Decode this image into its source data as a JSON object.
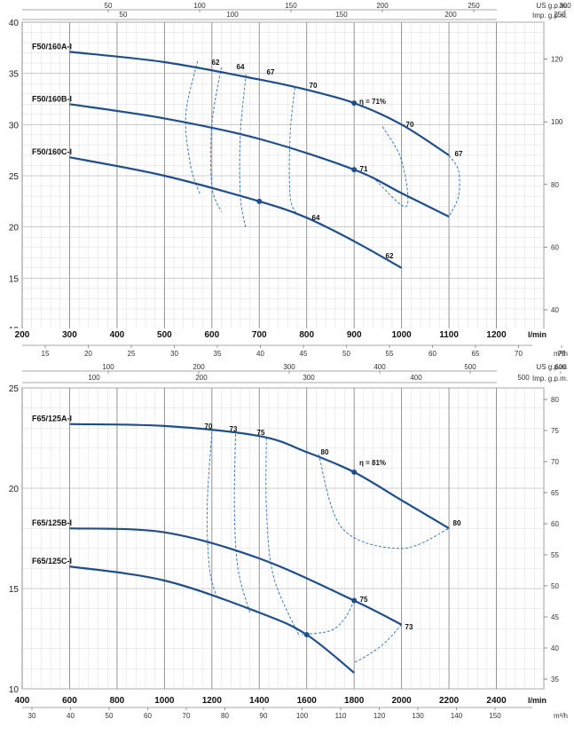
{
  "chart_data": [
    {
      "type": "line",
      "subtype": "pump-performance-curves",
      "xlabel": "l/min",
      "xlim": [
        200,
        1300
      ],
      "ylim": [
        10,
        40
      ],
      "x_ticks": [
        200,
        300,
        400,
        500,
        600,
        700,
        800,
        900,
        1000,
        1100,
        1200
      ],
      "y_ticks": [
        10,
        15,
        20,
        25,
        30,
        35,
        40
      ],
      "grid": true,
      "top_axes": [
        {
          "label": "US g.p.m.",
          "ticks": [
            50,
            100,
            150,
            200,
            250,
            300
          ]
        },
        {
          "label": "Imp. g.p.m.",
          "ticks": [
            50,
            100,
            150,
            200,
            250
          ]
        }
      ],
      "bottom_axis2": {
        "label": "m³/h",
        "ticks": [
          15,
          20,
          25,
          30,
          35,
          40,
          45,
          50,
          55,
          60,
          65,
          70,
          75
        ]
      },
      "right_axis": {
        "ticks": [
          40,
          60,
          80,
          100,
          120
        ]
      },
      "series": [
        {
          "name": "F50/160A-I",
          "x": [
            300,
            500,
            700,
            800,
            900,
            1000,
            1100
          ],
          "y": [
            37.1,
            36.1,
            34.4,
            33.4,
            32.1,
            30.0,
            27.0
          ]
        },
        {
          "name": "F50/160B-I",
          "x": [
            300,
            500,
            700,
            900,
            1000,
            1100
          ],
          "y": [
            32.0,
            30.6,
            28.6,
            25.6,
            23.3,
            21.0
          ]
        },
        {
          "name": "F50/160C-I",
          "x": [
            300,
            500,
            700,
            800,
            900,
            1000
          ],
          "y": [
            26.8,
            25.0,
            22.5,
            20.9,
            18.6,
            16.0
          ]
        }
      ],
      "efficiency_curves": [
        {
          "label": "62",
          "x": [
            570,
            545,
            555,
            575
          ],
          "y": [
            36.2,
            31.0,
            26.0,
            23.2
          ]
        },
        {
          "label": "64",
          "x": [
            620,
            600,
            600,
            620
          ],
          "y": [
            35.6,
            30.0,
            24.0,
            21.5
          ]
        },
        {
          "label": "67",
          "x": [
            672,
            660,
            660,
            672
          ],
          "y": [
            34.9,
            29.0,
            23.0,
            19.8
          ]
        },
        {
          "label": "70",
          "x": [
            775,
            765,
            765,
            780
          ],
          "y": [
            33.6,
            29.0,
            23.0,
            21.2
          ]
        },
        {
          "label": "70",
          "x": [
            960,
            1000,
            1010,
            945
          ],
          "y": [
            29.8,
            26.5,
            22.0,
            24.6
          ]
        },
        {
          "label": "67",
          "x": [
            1100,
            1120,
            1120,
            1100
          ],
          "y": [
            27.0,
            25.5,
            23.0,
            21.0
          ]
        }
      ],
      "markers": [
        {
          "x": 900,
          "y": 32.1
        },
        {
          "x": 900,
          "y": 25.6
        },
        {
          "x": 700,
          "y": 22.5
        }
      ],
      "annotations": [
        "62",
        "64",
        "67",
        "70",
        "η = 71%",
        "70",
        "67",
        "71",
        "64",
        "62"
      ]
    },
    {
      "type": "line",
      "subtype": "pump-performance-curves",
      "xlabel": "l/min",
      "xlim": [
        400,
        2600
      ],
      "ylim": [
        10,
        25
      ],
      "x_ticks": [
        400,
        600,
        800,
        1000,
        1200,
        1400,
        1600,
        1800,
        2000,
        2200,
        2400
      ],
      "y_ticks": [
        10,
        15,
        20,
        25
      ],
      "grid": true,
      "top_axes": [
        {
          "label": "US g.p.m.",
          "ticks": [
            100,
            200,
            300,
            400,
            500,
            600
          ]
        },
        {
          "label": "Imp. g.p.m.",
          "ticks": [
            100,
            200,
            300,
            400,
            500
          ]
        }
      ],
      "bottom_axis2": {
        "label": "m³/h",
        "ticks": [
          30,
          40,
          50,
          60,
          70,
          80,
          90,
          100,
          110,
          120,
          130,
          140,
          150
        ]
      },
      "right_axis": {
        "ticks": [
          35,
          40,
          45,
          50,
          55,
          60,
          65,
          70,
          75,
          80
        ]
      },
      "series": [
        {
          "name": "F65/125A-I",
          "x": [
            600,
            1000,
            1400,
            1600,
            1800,
            2000,
            2200
          ],
          "y": [
            23.2,
            23.1,
            22.6,
            21.8,
            20.8,
            19.4,
            18.0
          ]
        },
        {
          "name": "F65/125B-I",
          "x": [
            600,
            1000,
            1400,
            1800,
            2000
          ],
          "y": [
            18.0,
            17.8,
            16.5,
            14.4,
            13.2
          ]
        },
        {
          "name": "F65/125C-I",
          "x": [
            600,
            1000,
            1400,
            1600,
            1800
          ],
          "y": [
            16.1,
            15.4,
            13.8,
            12.7,
            10.8
          ]
        }
      ],
      "efficiency_curves": [
        {
          "label": "70",
          "x": [
            1200,
            1180,
            1190,
            1220
          ],
          "y": [
            22.8,
            19.0,
            16.0,
            14.6
          ]
        },
        {
          "label": "73",
          "x": [
            1300,
            1295,
            1310,
            1360
          ],
          "y": [
            22.7,
            19.0,
            16.0,
            13.8
          ]
        },
        {
          "label": "75",
          "x": [
            1430,
            1430,
            1460,
            1570
          ],
          "y": [
            22.5,
            19.0,
            15.6,
            12.6
          ]
        },
        {
          "label": "80",
          "x": [
            1650,
            1750,
            2000,
            2200
          ],
          "y": [
            21.7,
            18.0,
            17.0,
            18.0
          ]
        },
        {
          "label": "75",
          "x": [
            1800,
            1760,
            1700,
            1580
          ],
          "y": [
            14.4,
            13.5,
            12.9,
            12.7
          ]
        },
        {
          "label": "73",
          "x": [
            2000,
            1930,
            1860,
            1800
          ],
          "y": [
            13.2,
            12.3,
            11.7,
            11.3
          ]
        }
      ],
      "markers": [
        {
          "x": 1800,
          "y": 20.8
        },
        {
          "x": 1800,
          "y": 14.4
        },
        {
          "x": 1600,
          "y": 12.7
        }
      ],
      "annotations": [
        "70",
        "73",
        "75",
        "80",
        "η = 81%",
        "80",
        "75",
        "73"
      ]
    }
  ]
}
